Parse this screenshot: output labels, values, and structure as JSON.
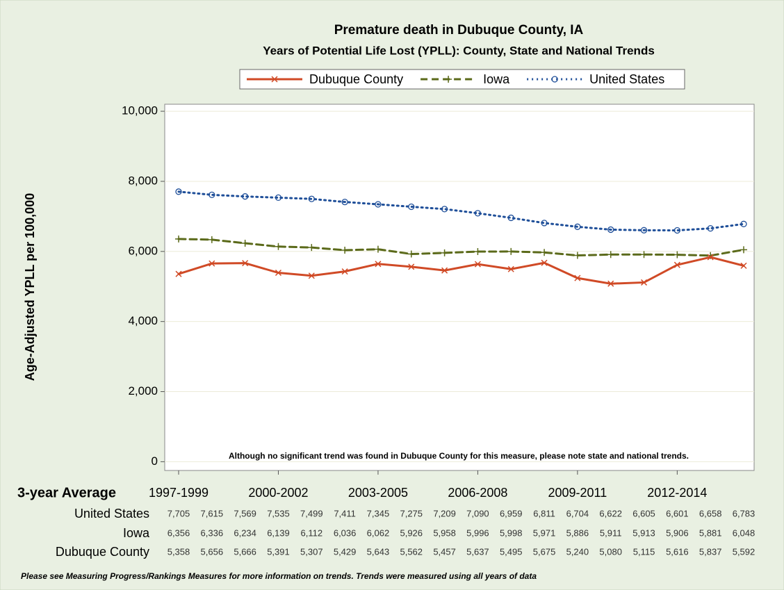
{
  "chart_data": {
    "type": "line",
    "title": "Premature death in Dubuque County, IA",
    "subtitle": "Years of Potential Life Lost (YPLL): County, State and National Trends",
    "y_label": "Age-Adjusted YPLL per 100,000",
    "x_label": "3-year Average",
    "annotation": "Although no significant trend was found in Dubuque County for this measure, please note state and national trends.",
    "footnote": "Please see Measuring Progress/Rankings Measures for more information on trends. Trends were measured using all years of data",
    "categories": [
      "1997-1999",
      null,
      null,
      "2000-2002",
      null,
      null,
      "2003-2005",
      null,
      null,
      "2006-2008",
      null,
      null,
      "2009-2011",
      null,
      null,
      "2012-2014",
      null,
      null
    ],
    "ylim": [
      -250,
      10200
    ],
    "yticks": [
      0,
      {
        "value": 2000,
        "label": "2,000"
      },
      {
        "value": 4000,
        "label": "4,000"
      },
      {
        "value": 6000,
        "label": "6,000"
      },
      {
        "value": 8000,
        "label": "8,000"
      },
      {
        "value": 10000,
        "label": "10,000"
      }
    ],
    "grid": true,
    "series": [
      {
        "name": "Dubuque County",
        "color": "#d04a26",
        "dash": "solid",
        "marker": "x",
        "values": [
          5358,
          5656,
          5666,
          5391,
          5307,
          5429,
          5643,
          5562,
          5457,
          5637,
          5495,
          5675,
          5240,
          5080,
          5115,
          5616,
          5837,
          5592
        ],
        "value_labels": [
          "5,358",
          "5,656",
          "5,666",
          "5,391",
          "5,307",
          "5,429",
          "5,643",
          "5,562",
          "5,457",
          "5,637",
          "5,495",
          "5,675",
          "5,240",
          "5,080",
          "5,115",
          "5,616",
          "5,837",
          "5,592"
        ]
      },
      {
        "name": "Iowa",
        "color": "#5b6a1a",
        "dash": "dashed",
        "marker": "plus",
        "values": [
          6356,
          6336,
          6234,
          6139,
          6112,
          6036,
          6062,
          5926,
          5958,
          5996,
          5998,
          5971,
          5886,
          5911,
          5913,
          5906,
          5881,
          6048
        ],
        "value_labels": [
          "6,356",
          "6,336",
          "6,234",
          "6,139",
          "6,112",
          "6,036",
          "6,062",
          "5,926",
          "5,958",
          "5,996",
          "5,998",
          "5,971",
          "5,886",
          "5,911",
          "5,913",
          "5,906",
          "5,881",
          "6,048"
        ]
      },
      {
        "name": "United States",
        "color": "#1f4f99",
        "dash": "dotted",
        "marker": "circle",
        "values": [
          7705,
          7615,
          7569,
          7535,
          7499,
          7411,
          7345,
          7275,
          7209,
          7090,
          6959,
          6811,
          6704,
          6622,
          6605,
          6601,
          6658,
          6783
        ],
        "value_labels": [
          "7,705",
          "7,615",
          "7,569",
          "7,535",
          "7,499",
          "7,411",
          "7,345",
          "7,275",
          "7,209",
          "7,090",
          "6,959",
          "6,811",
          "6,704",
          "6,622",
          "6,605",
          "6,601",
          "6,658",
          "6,783"
        ]
      }
    ]
  }
}
